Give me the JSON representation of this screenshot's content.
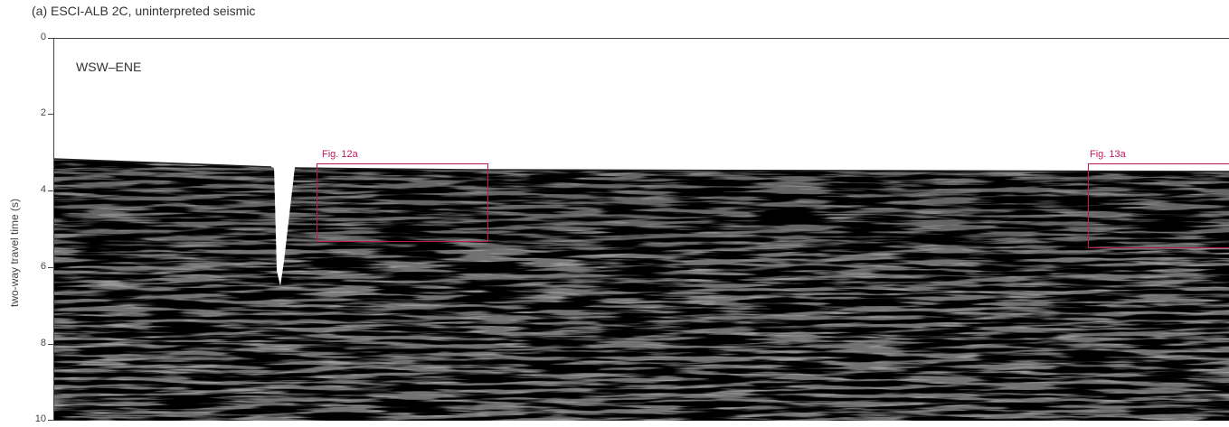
{
  "title": "(a) ESCI-ALB 2C, uninterpreted seismic",
  "direction_label": "WSW–ENE",
  "y_axis": {
    "label": "two-way travel time (s)",
    "ticks": [
      "0",
      "2",
      "4",
      "6",
      "8",
      "10"
    ]
  },
  "boxes": [
    {
      "label": "Fig. 12a"
    },
    {
      "label": "Fig. 13a"
    }
  ],
  "colors": {
    "box_accent": "#c2185b",
    "seismic_dark": "#1a1a1a",
    "seismic_mid": "#7a7a7a",
    "background": "#ffffff"
  }
}
